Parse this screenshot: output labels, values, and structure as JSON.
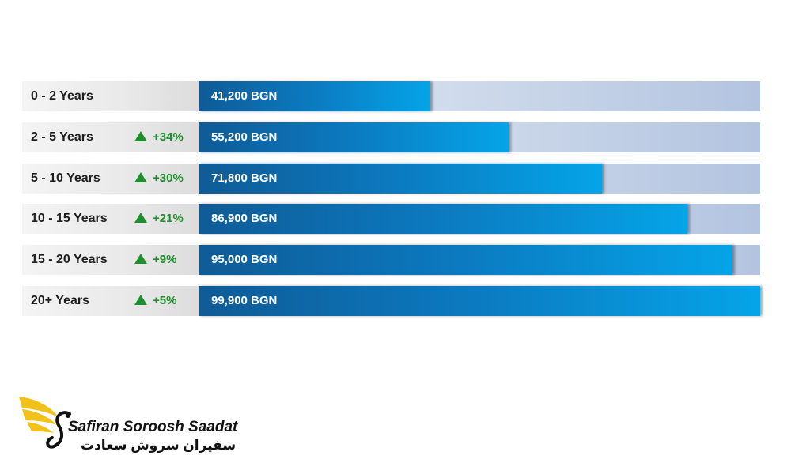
{
  "chart_data": {
    "type": "bar",
    "orientation": "horizontal",
    "title": "",
    "xlabel": "",
    "ylabel": "",
    "xlim": [
      0,
      99900
    ],
    "unit": "BGN",
    "categories": [
      "0 - 2 Years",
      "2 - 5 Years",
      "5 - 10 Years",
      "10 - 15 Years",
      "15 - 20 Years",
      "20+ Years"
    ],
    "values": [
      41200,
      55200,
      71800,
      86900,
      95000,
      99900
    ],
    "value_labels": [
      "41,200 BGN",
      "55,200 BGN",
      "71,800 BGN",
      "86,900 BGN",
      "95,000 BGN",
      "99,900 BGN"
    ],
    "changes": [
      "",
      "+34%",
      "+30%",
      "+21%",
      "+9%",
      "+5%"
    ],
    "grid": false,
    "legend": "none"
  },
  "colors": {
    "bar": "#0c77bd",
    "bar_light": "#05a4e8",
    "track": "#cdd9eb",
    "change_up": "#1e8f2c",
    "logo_accent": "#f2c21b"
  },
  "logo": {
    "latin": "Safiran Soroosh Saadat",
    "persian": "سفیران سروش سعادت",
    "icon": "wing-swan-logo"
  }
}
